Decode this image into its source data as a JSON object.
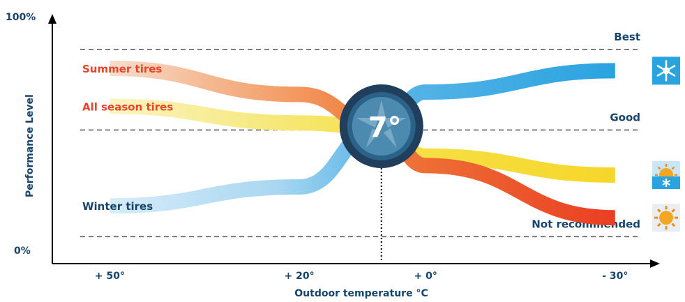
{
  "chart_data": {
    "type": "line",
    "title": "",
    "xlabel": "Outdoor temperature °C",
    "ylabel": "Performance Level",
    "y_ticks": [
      "100%",
      "0%"
    ],
    "x_ticks": [
      {
        "label": "+ 50°",
        "value": 50
      },
      {
        "label": "+ 20°",
        "value": 20
      },
      {
        "label": "+ 0°",
        "value": 0
      },
      {
        "label": "- 30°",
        "value": -30
      }
    ],
    "xlim": [
      58,
      -34
    ],
    "ylim": [
      0,
      100
    ],
    "x_reversed": true,
    "crossover": {
      "value": 7,
      "label": "7°"
    },
    "levels": [
      {
        "label": "Best",
        "value": 88
      },
      {
        "label": "Good",
        "value": 54
      },
      {
        "label": "Not recommended",
        "value": 9
      }
    ],
    "series": [
      {
        "name": "Summer tires",
        "icon": "sun-icon",
        "label_color": "#e8442a",
        "colors": [
          "#f6ddcc",
          "#f4a06a",
          "#ef7b3a",
          "#ea3e22"
        ],
        "x": [
          50,
          20,
          7,
          0,
          -30
        ],
        "y": [
          80,
          69,
          55,
          39,
          17
        ]
      },
      {
        "name": "All season tires",
        "icon": "sun-snowflake-icon",
        "label_color": "#e8442a",
        "colors": [
          "#fbf4c2",
          "#f6e87a",
          "#f6e24a",
          "#f6d62a"
        ],
        "x": [
          50,
          20,
          7,
          0,
          -30
        ],
        "y": [
          64,
          57,
          55,
          43,
          35
        ]
      },
      {
        "name": "Winter tires",
        "icon": "snowflake-icon",
        "label_color": "#17446b",
        "colors": [
          "#d7ecf9",
          "#a9d7f2",
          "#5cb6e6",
          "#2aa3e1"
        ],
        "x": [
          50,
          20,
          7,
          0,
          -30
        ],
        "y": [
          22,
          30,
          55,
          70,
          79
        ]
      }
    ]
  }
}
